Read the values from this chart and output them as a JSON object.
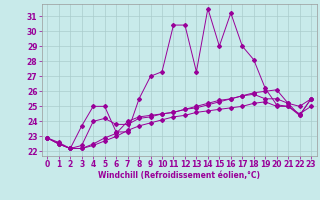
{
  "xlabel": "Windchill (Refroidissement éolien,°C)",
  "bg_color": "#c8eaea",
  "line_color": "#990099",
  "grid_color": "#aacccc",
  "xlim": [
    -0.5,
    23.5
  ],
  "ylim": [
    21.7,
    31.8
  ],
  "xticks": [
    0,
    1,
    2,
    3,
    4,
    5,
    6,
    7,
    8,
    9,
    10,
    11,
    12,
    13,
    14,
    15,
    16,
    17,
    18,
    19,
    20,
    21,
    22,
    23
  ],
  "yticks": [
    22,
    23,
    24,
    25,
    26,
    27,
    28,
    29,
    30,
    31
  ],
  "series": {
    "line1": [
      22.9,
      22.6,
      22.2,
      23.7,
      25.0,
      25.0,
      23.3,
      23.3,
      25.5,
      27.0,
      27.3,
      30.4,
      30.4,
      27.3,
      31.5,
      29.0,
      31.2,
      29.0,
      28.1,
      26.2,
      25.1,
      25.0,
      24.4,
      25.5
    ],
    "line2": [
      22.9,
      22.5,
      22.2,
      22.2,
      22.5,
      22.9,
      23.2,
      24.0,
      24.3,
      24.4,
      24.5,
      24.6,
      24.8,
      25.0,
      25.2,
      25.4,
      25.5,
      25.7,
      25.9,
      26.0,
      26.1,
      25.2,
      24.4,
      25.5
    ],
    "line3": [
      22.9,
      22.5,
      22.2,
      22.2,
      22.4,
      22.7,
      23.0,
      23.4,
      23.7,
      23.9,
      24.1,
      24.3,
      24.4,
      24.6,
      24.7,
      24.8,
      24.9,
      25.0,
      25.2,
      25.3,
      25.0,
      25.0,
      24.5,
      25.0
    ],
    "line4": [
      22.9,
      22.5,
      22.2,
      22.4,
      24.0,
      24.2,
      23.8,
      23.8,
      24.2,
      24.3,
      24.5,
      24.6,
      24.8,
      24.9,
      25.1,
      25.3,
      25.5,
      25.7,
      25.8,
      25.5,
      25.5,
      25.2,
      25.0,
      25.5
    ]
  },
  "tick_fontsize": 5.5,
  "xlabel_fontsize": 5.5
}
